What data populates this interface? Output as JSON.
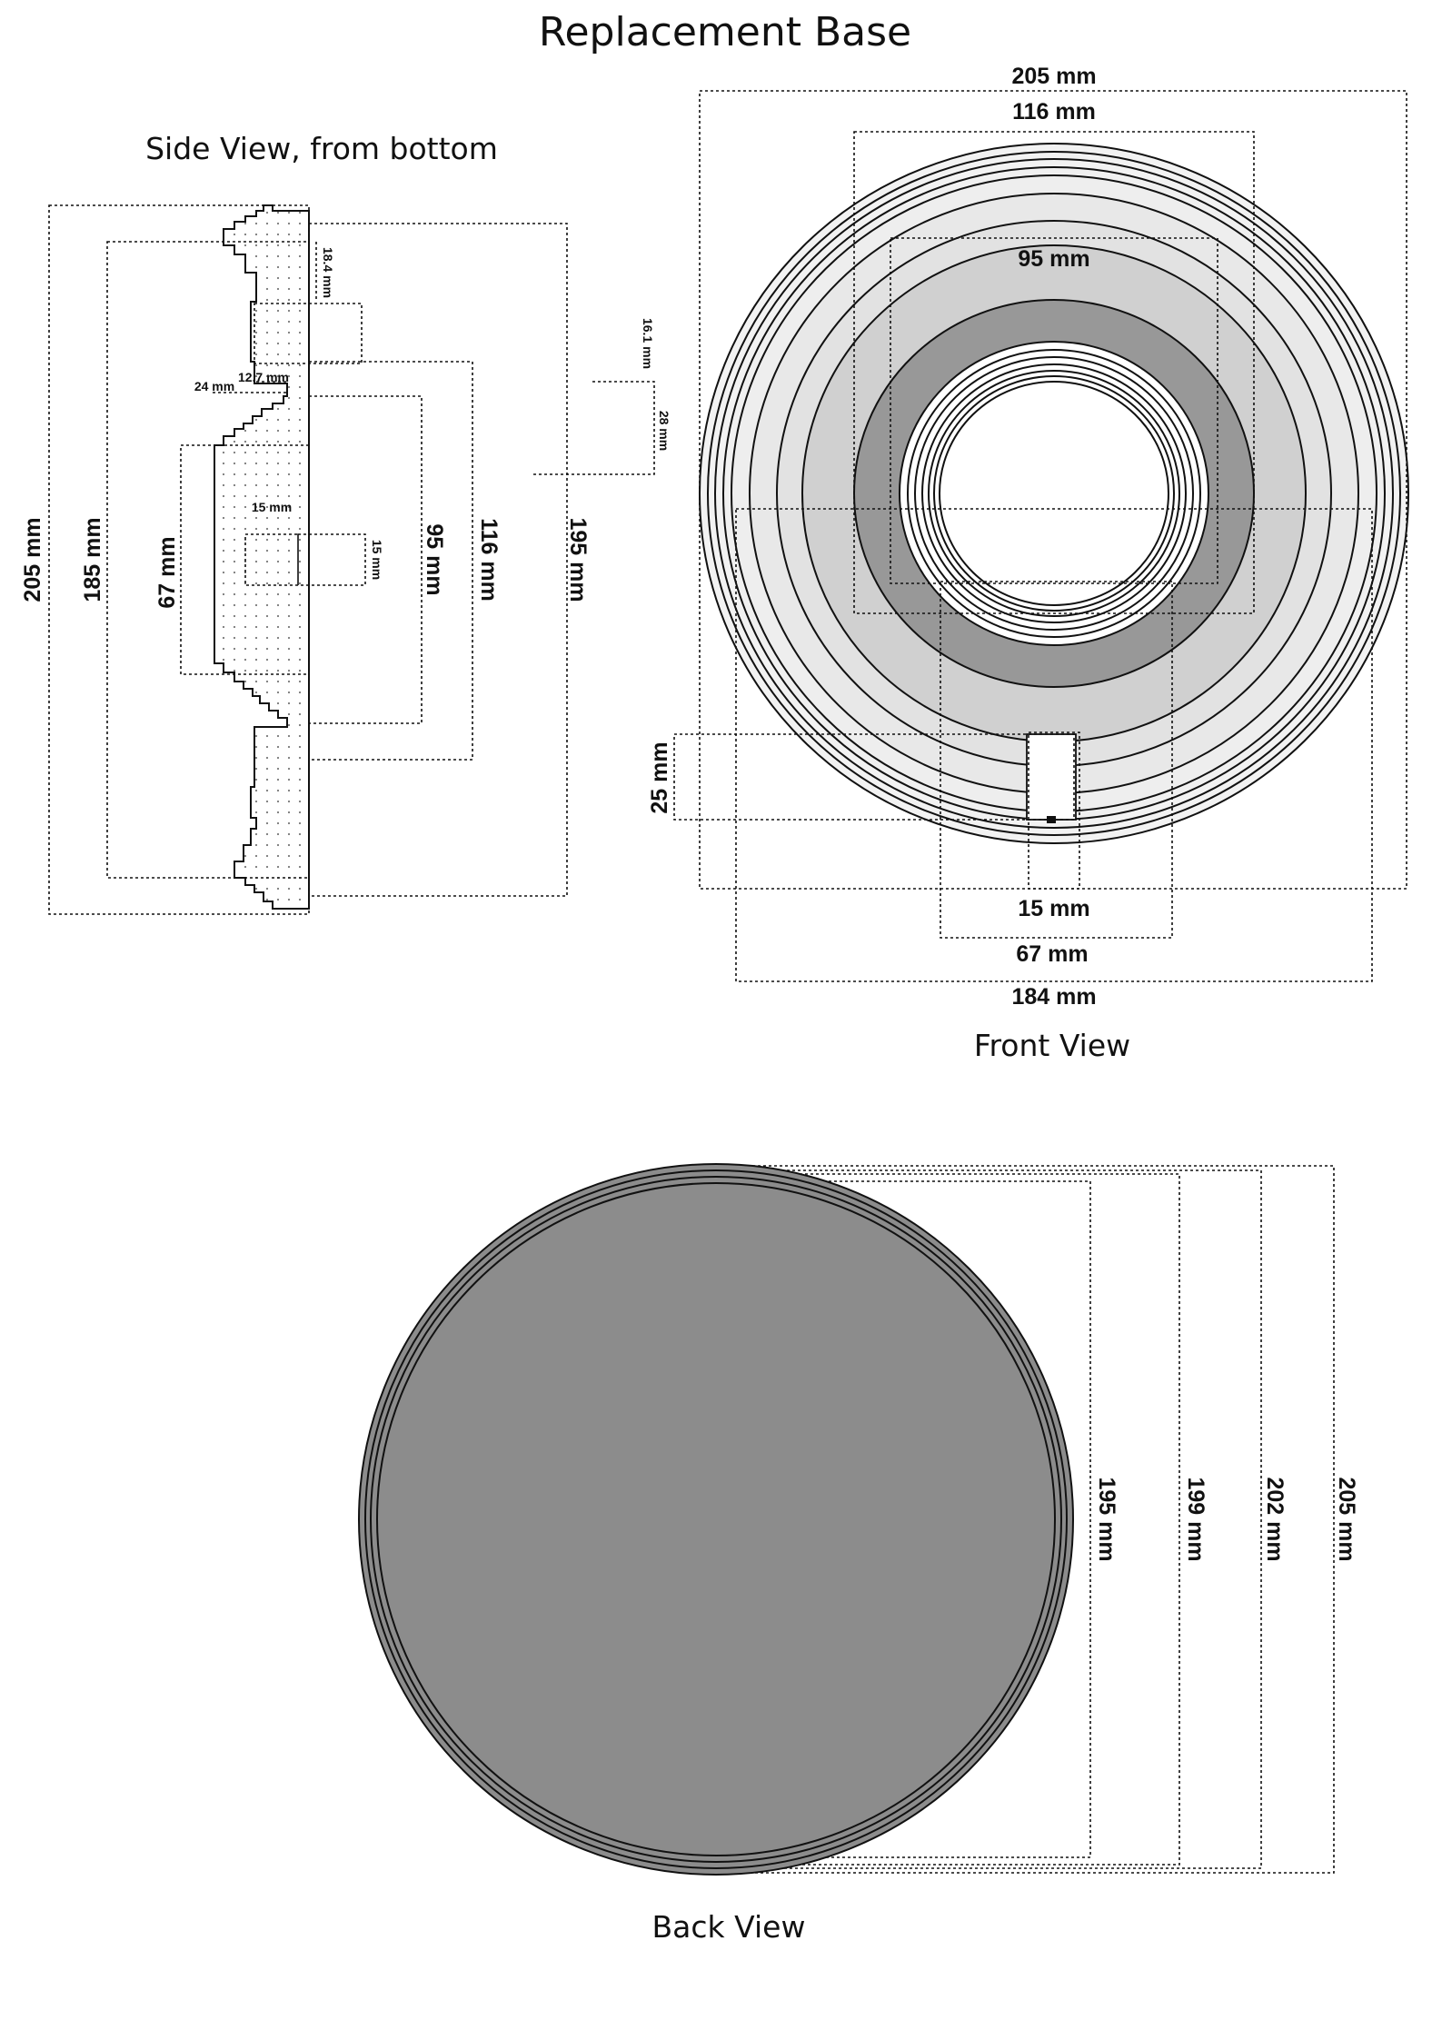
{
  "title": "Replacement Base",
  "views": {
    "side": {
      "caption": "Side View, from bottom",
      "dims": {
        "d205": "205 mm",
        "d185": "185 mm",
        "d67": "67 mm",
        "d95": "95 mm",
        "d116": "116 mm",
        "d195": "195 mm",
        "d18_4": "18.4 mm",
        "d16_1": "16.1 mm",
        "d28": "28 mm",
        "d12_7": "12.7 mm",
        "d24": "24 mm",
        "d15w": "15 mm",
        "d15h": "15 mm"
      }
    },
    "front": {
      "caption": "Front View",
      "dims": {
        "d205": "205 mm",
        "d116": "116 mm",
        "d95": "95 mm",
        "d25": "25 mm",
        "d15": "15 mm",
        "d67": "67 mm",
        "d184": "184 mm"
      }
    },
    "back": {
      "caption": "Back View",
      "dims": {
        "d195": "195 mm",
        "d199": "199 mm",
        "d202": "202 mm",
        "d205": "205 mm"
      }
    }
  },
  "colors": {
    "outline": "#111111",
    "rim_light": "#f2f2f2",
    "rim_mid": "#e8e8e8",
    "face": "#d0d0d0",
    "hub": "#989898",
    "back_disc": "#8c8c8c"
  }
}
